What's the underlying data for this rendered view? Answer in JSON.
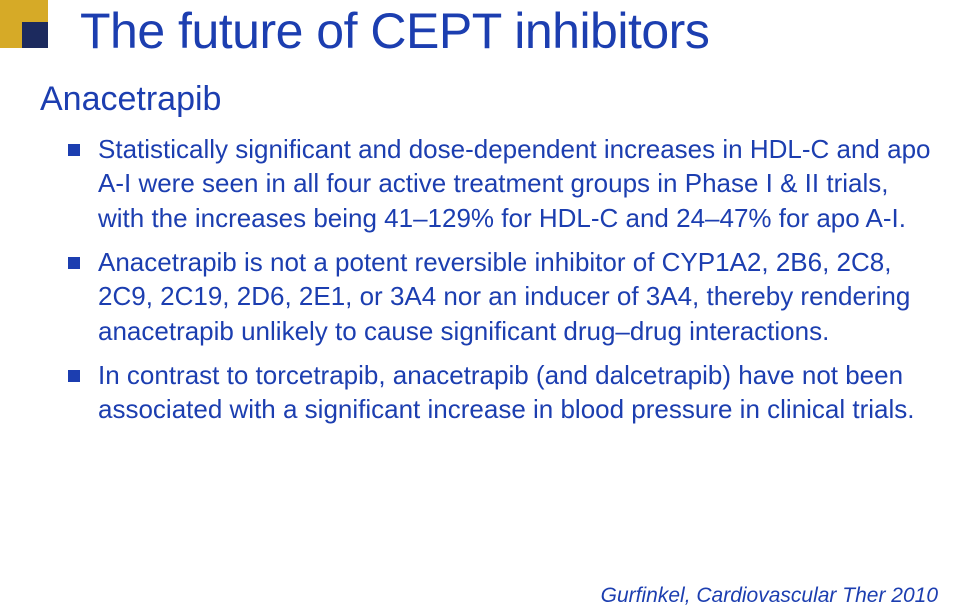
{
  "colors": {
    "text": "#1c3eb0",
    "accent_gold": "#d6aa27",
    "accent_navy": "#1c2a5e",
    "background": "#ffffff",
    "bullet_marker": "#1c3eb0"
  },
  "typography": {
    "title_fontsize": 50,
    "subtitle_fontsize": 34,
    "body_fontsize": 26,
    "citation_fontsize": 21,
    "font_family": "Trebuchet MS"
  },
  "title": "The future of CEPT inhibitors",
  "subtitle": "Anacetrapib",
  "bullets": [
    "Statistically significant and dose-dependent increases in HDL-C and apo A-I were seen in all four active treatment groups in Phase I & II trials, with the increases being 41–129% for HDL-C and 24–47% for apo A-I.",
    "Anacetrapib is not a potent reversible inhibitor of CYP1A2, 2B6, 2C8, 2C9, 2C19, 2D6, 2E1, or 3A4 nor an inducer of 3A4, thereby rendering anacetrapib unlikely to cause significant drug–drug interactions.",
    "In contrast to torcetrapib, anacetrapib (and dalcetrapib) have not been associated with a significant increase in blood pressure in clinical trials."
  ],
  "citation": "Gurfinkel, Cardiovascular Ther 2010"
}
